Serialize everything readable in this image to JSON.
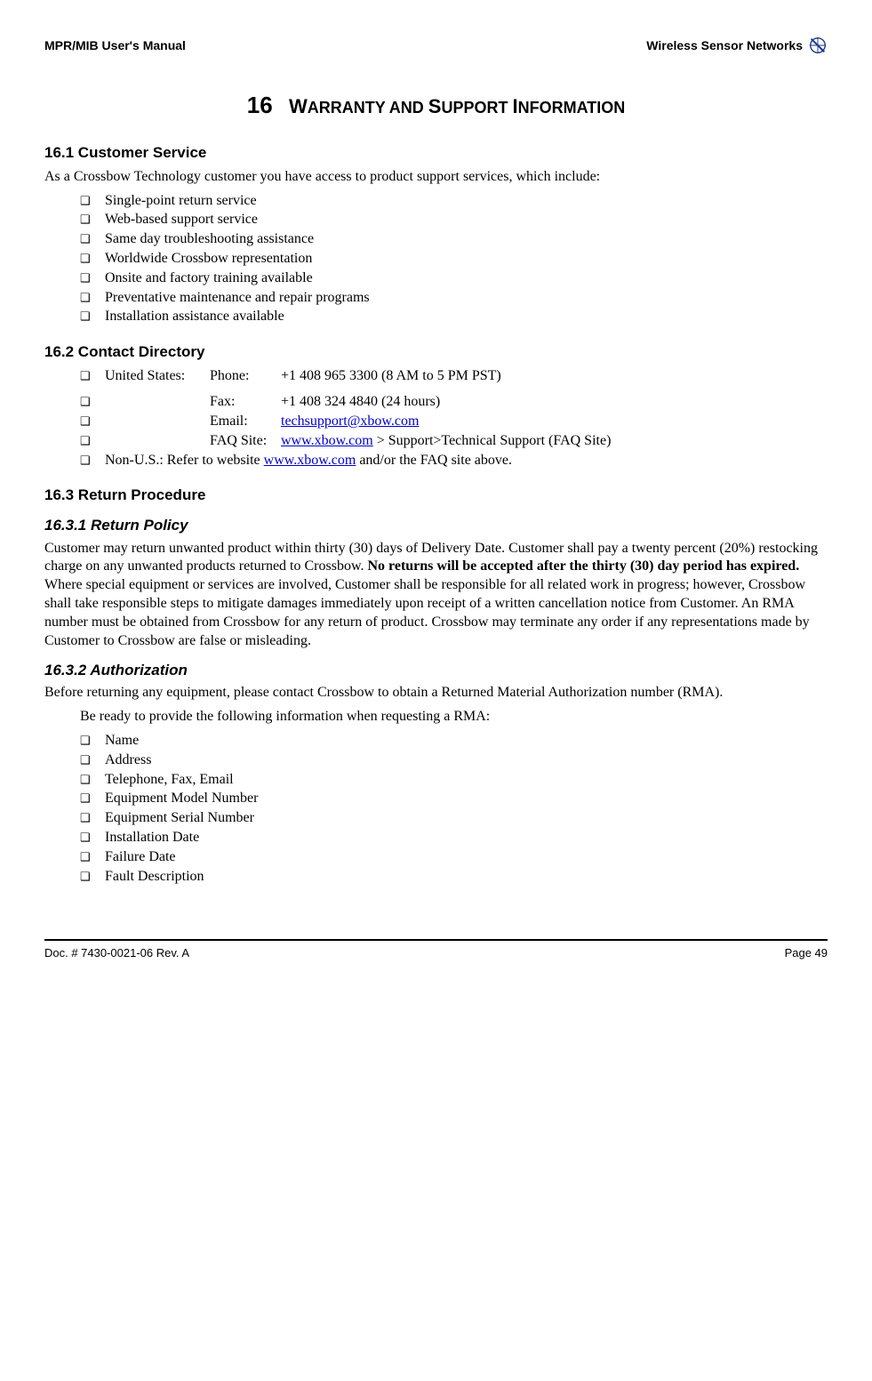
{
  "header": {
    "left": "MPR/MIB User's Manual",
    "right": "Wireless Sensor Networks"
  },
  "chapter": {
    "number": "16",
    "title_pre": "W",
    "title_rest": "ARRANTY AND ",
    "title_pre2": "S",
    "title_rest2": "UPPORT ",
    "title_pre3": "I",
    "title_rest3": "NFORMATION"
  },
  "s1": {
    "heading": "16.1    Customer Service",
    "intro": "As a Crossbow Technology customer you have access to product support services, which include:",
    "items": [
      "Single-point return service",
      "Web-based support service",
      "Same day troubleshooting assistance",
      "Worldwide Crossbow representation",
      "Onsite and factory training available",
      "Preventative maintenance and repair programs",
      "Installation assistance available"
    ]
  },
  "s2": {
    "heading": "16.2    Contact Directory",
    "rows": [
      {
        "a": "United States:",
        "b": "Phone:",
        "c": "+1 408 965 3300 (8 AM to 5 PM PST)"
      },
      {
        "a": "",
        "b": "Fax:",
        "c": "+1 408 324 4840 (24 hours)"
      },
      {
        "a": "",
        "b": "Email:",
        "link": "techsupport@xbow.com"
      },
      {
        "a": "",
        "b": "FAQ Site:",
        "link": "www.xbow.com",
        "suffix": " > Support>Technical Support (FAQ Site)"
      }
    ],
    "nonus_pre": "Non-U.S.: Refer to website ",
    "nonus_link": "www.xbow.com",
    "nonus_post": " and/or the FAQ site above."
  },
  "s3": {
    "heading": "16.3    Return Procedure",
    "sub1": {
      "heading": "16.3.1      Return Policy",
      "para_pre": "Customer may return unwanted product within thirty (30) days of Delivery Date. Customer shall pay a twenty percent (20%) restocking charge on any unwanted products returned to Crossbow. ",
      "para_bold": "No returns will be accepted after the thirty (30) day period has expired.",
      "para_post": " Where special equipment or services are involved, Customer shall be responsible for all related work in progress; however, Crossbow shall take responsible steps to mitigate damages immediately upon receipt of a written cancellation notice from Customer. An RMA number must be obtained from Crossbow for any return of product. Crossbow may terminate any order if any representations made by Customer to Crossbow are false or misleading."
    },
    "sub2": {
      "heading": "16.3.2      Authorization",
      "para": "Before returning any equipment, please contact Crossbow to obtain a Returned Material Authorization number (RMA).",
      "lead": "Be ready to provide the following information when requesting a RMA:",
      "items": [
        "Name",
        "Address",
        "Telephone, Fax, Email",
        "Equipment Model Number",
        "Equipment Serial Number",
        "Installation Date",
        "Failure Date",
        "Fault Description"
      ]
    }
  },
  "footer": {
    "left": "Doc. # 7430-0021-06 Rev. A",
    "right": "Page 49"
  },
  "colors": {
    "link": "#0000cc",
    "logo_blue": "#1a3a8a"
  }
}
